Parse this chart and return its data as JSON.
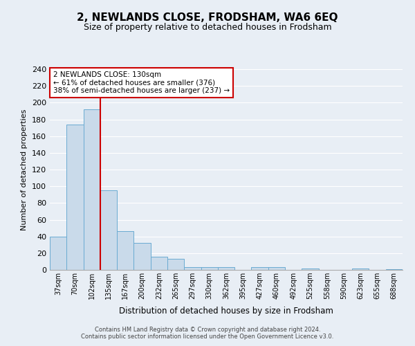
{
  "title": "2, NEWLANDS CLOSE, FRODSHAM, WA6 6EQ",
  "subtitle": "Size of property relative to detached houses in Frodsham",
  "xlabel": "Distribution of detached houses by size in Frodsham",
  "ylabel": "Number of detached properties",
  "bin_labels": [
    "37sqm",
    "70sqm",
    "102sqm",
    "135sqm",
    "167sqm",
    "200sqm",
    "232sqm",
    "265sqm",
    "297sqm",
    "330sqm",
    "362sqm",
    "395sqm",
    "427sqm",
    "460sqm",
    "492sqm",
    "525sqm",
    "558sqm",
    "590sqm",
    "623sqm",
    "655sqm",
    "688sqm"
  ],
  "bar_heights": [
    40,
    174,
    192,
    95,
    46,
    32,
    16,
    13,
    3,
    3,
    3,
    0,
    3,
    3,
    0,
    2,
    0,
    0,
    2,
    0,
    1
  ],
  "bar_color": "#c9daea",
  "bar_edge_color": "#6aabd2",
  "vline_color": "#cc0000",
  "ylim": [
    0,
    240
  ],
  "yticks": [
    0,
    20,
    40,
    60,
    80,
    100,
    120,
    140,
    160,
    180,
    200,
    220,
    240
  ],
  "annotation_title": "2 NEWLANDS CLOSE: 130sqm",
  "annotation_line1": "← 61% of detached houses are smaller (376)",
  "annotation_line2": "38% of semi-detached houses are larger (237) →",
  "annotation_box_color": "white",
  "annotation_box_edge": "#cc0000",
  "footer_line1": "Contains HM Land Registry data © Crown copyright and database right 2024.",
  "footer_line2": "Contains public sector information licensed under the Open Government Licence v3.0.",
  "background_color": "#e8eef5",
  "plot_background": "#e8eef5",
  "grid_color": "#ffffff",
  "spine_color": "#aaaaaa"
}
